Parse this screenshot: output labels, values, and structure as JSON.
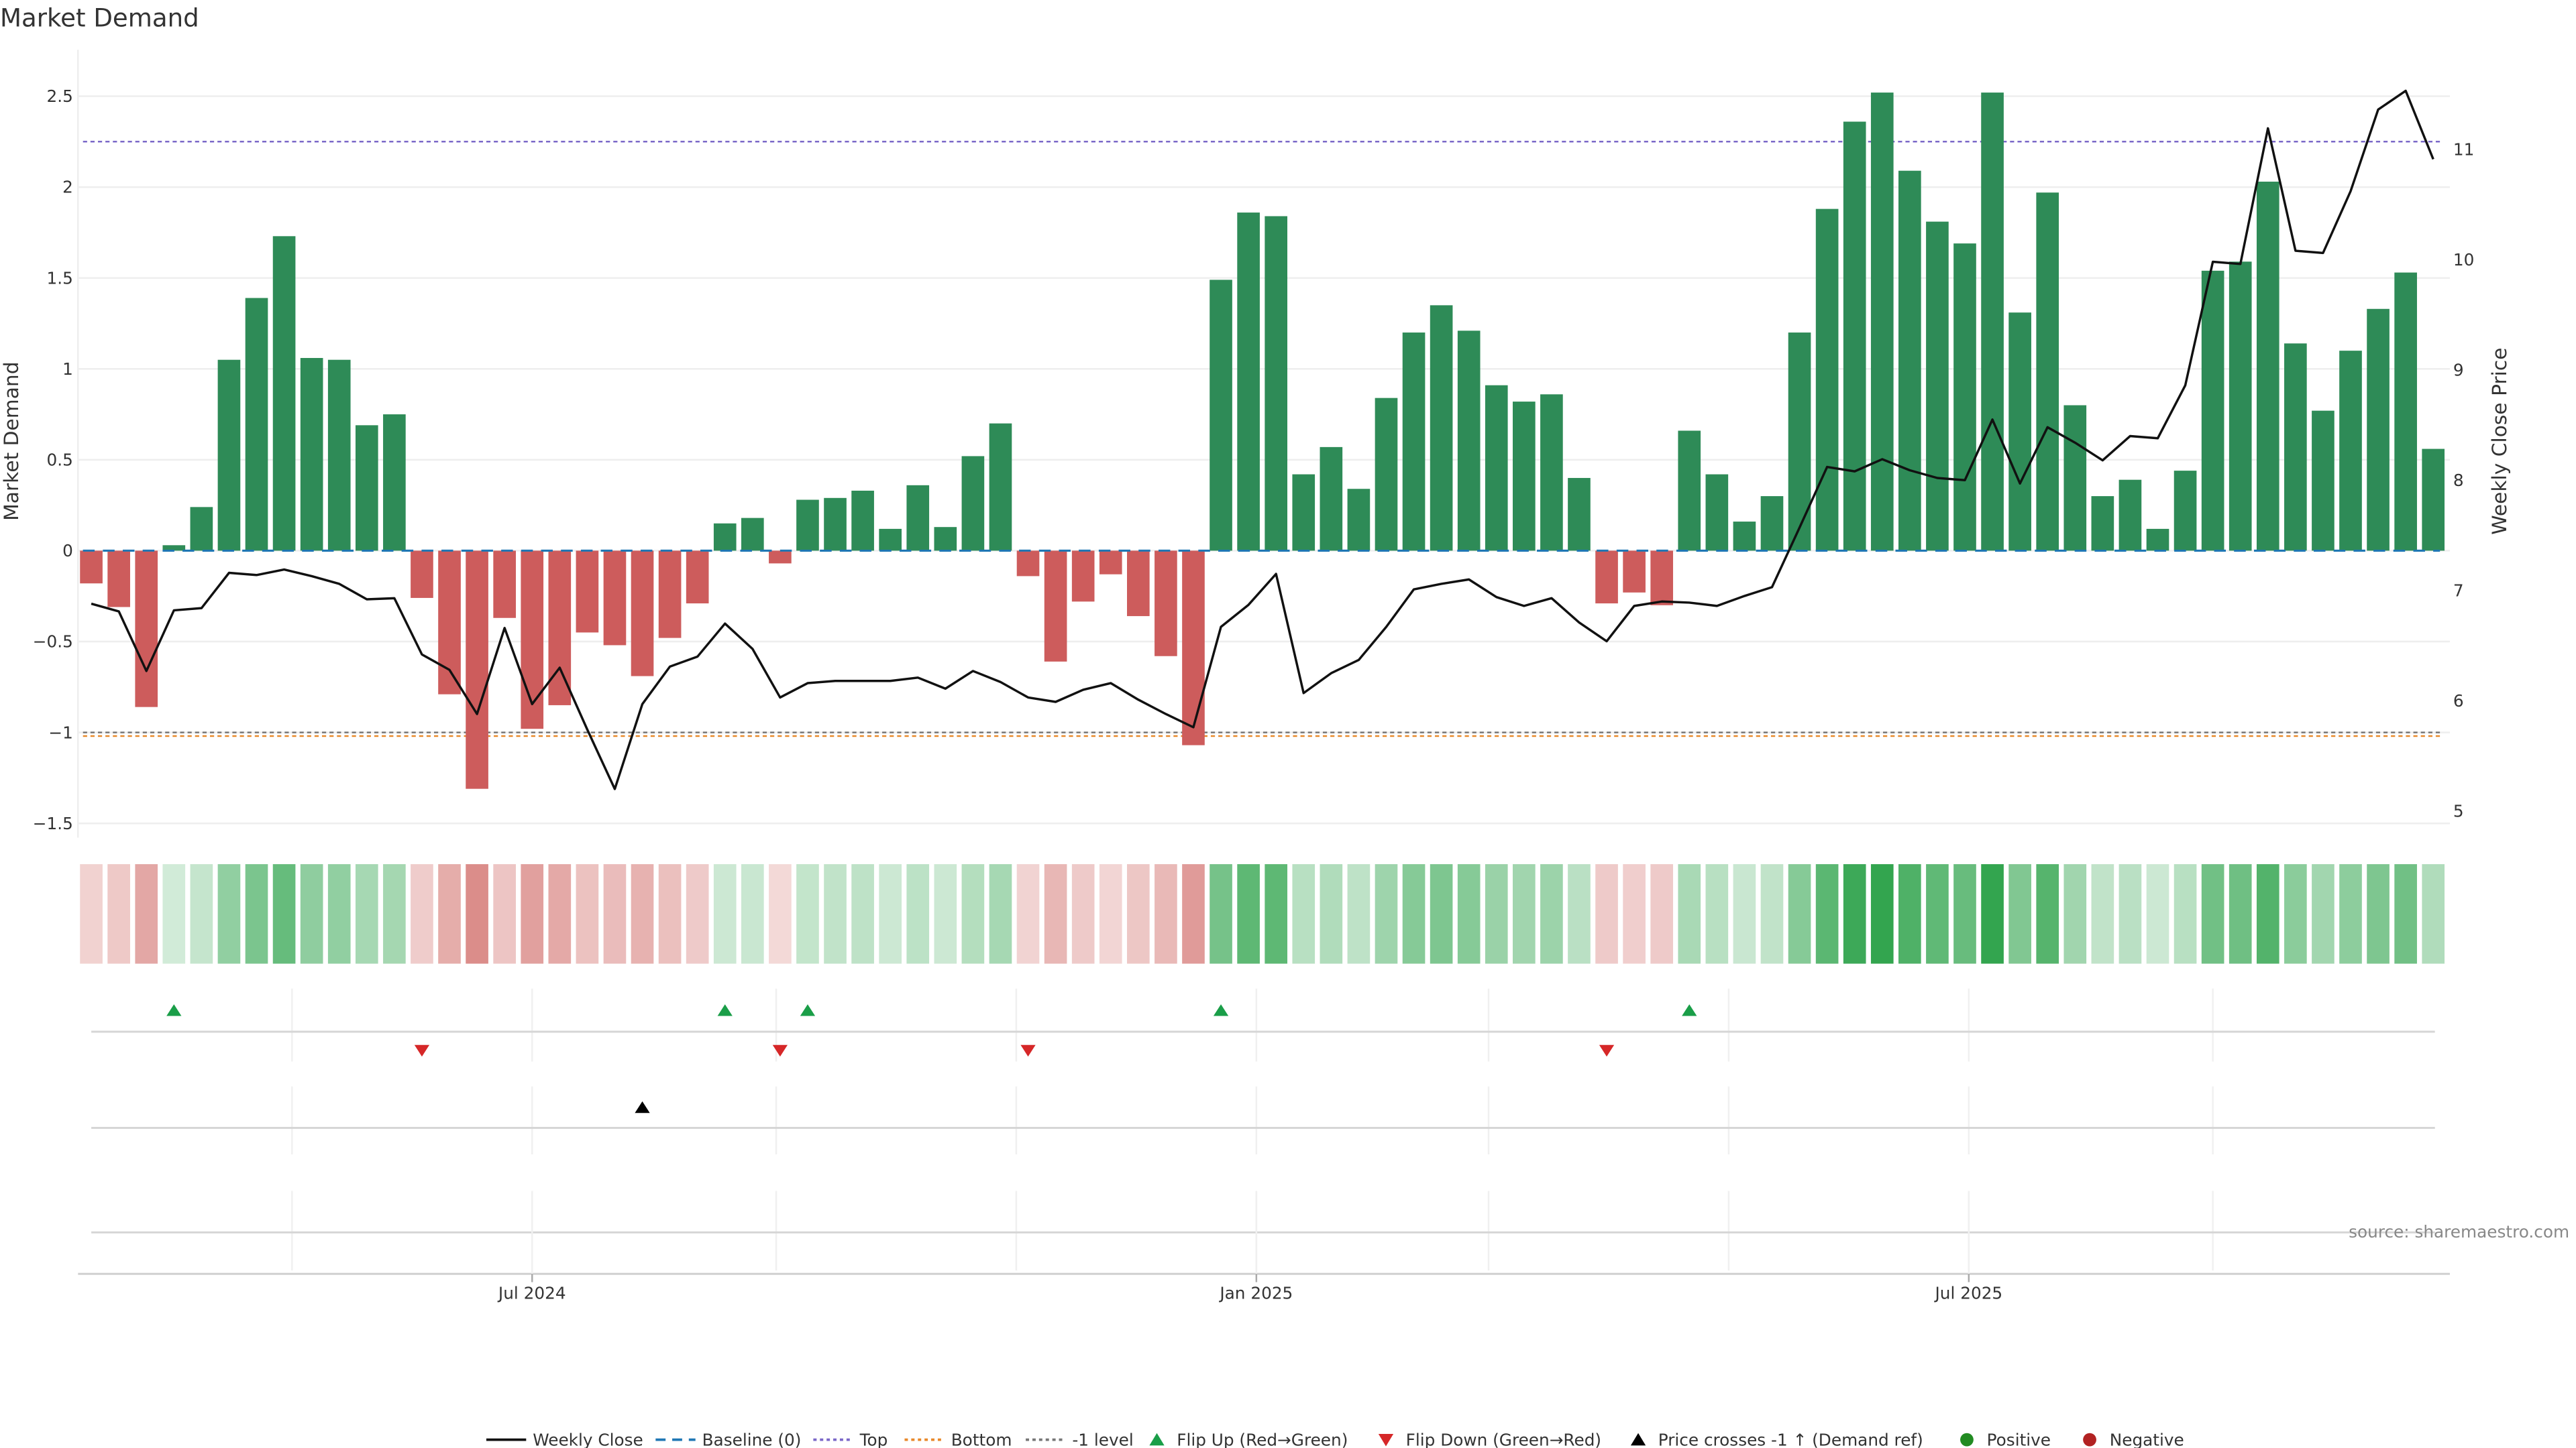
{
  "chart_data": {
    "type": "bar",
    "title": "Market Demand",
    "ylabel": "Market Demand",
    "y2label": "Weekly Close Price",
    "ylim": [
      -1.5,
      2.7
    ],
    "y2lim": [
      5,
      11.6
    ],
    "yticks": [
      2.5,
      2,
      1.5,
      1,
      0.5,
      0,
      -0.5,
      -1,
      -1.5
    ],
    "ytick_labels": [
      "2.5",
      "2",
      "1.5",
      "1",
      "0.5",
      "0",
      "−0.5",
      "−1",
      "−1.5"
    ],
    "y2ticks": [
      5,
      6,
      7,
      8,
      9,
      10,
      11
    ],
    "y2tick_labels": [
      "5",
      "6",
      "7",
      "8",
      "9",
      "10",
      "11"
    ],
    "x_start_date": "2024-03-11",
    "x_frequency": "weekly",
    "xticks": [
      {
        "date": "2024-07-01",
        "label": "Jul 2024"
      },
      {
        "date": "2025-01-01",
        "label": "Jan 2025"
      },
      {
        "date": "2025-07-01",
        "label": "Jul 2025"
      }
    ],
    "minor_grid_dates": [
      "2024-05-01",
      "2024-07-01",
      "2024-09-01",
      "2024-11-01",
      "2025-01-01",
      "2025-03-01",
      "2025-05-01",
      "2025-07-01",
      "2025-09-01"
    ],
    "series": [
      {
        "name": "Market Demand",
        "kind": "bar",
        "values": [
          -0.18,
          -0.31,
          -0.86,
          0.03,
          0.24,
          1.05,
          1.39,
          1.73,
          1.06,
          1.05,
          0.69,
          0.75,
          -0.26,
          -0.79,
          -1.31,
          -0.37,
          -0.98,
          -0.85,
          -0.45,
          -0.52,
          -0.69,
          -0.48,
          -0.29,
          0.15,
          0.18,
          -0.07,
          0.28,
          0.29,
          0.33,
          0.12,
          0.36,
          0.13,
          0.52,
          0.7,
          -0.14,
          -0.61,
          -0.28,
          -0.13,
          -0.36,
          -0.58,
          -1.07,
          1.49,
          1.86,
          1.84,
          0.42,
          0.57,
          0.34,
          0.84,
          1.2,
          1.35,
          1.21,
          0.91,
          0.82,
          0.86,
          0.4,
          -0.29,
          -0.23,
          -0.3,
          0.66,
          0.42,
          0.16,
          0.3,
          1.2,
          1.88,
          2.36,
          2.52,
          2.09,
          1.81,
          1.69,
          2.52,
          1.31,
          1.97,
          0.8,
          0.3,
          0.39,
          0.12,
          0.44,
          1.54,
          1.59,
          2.03,
          1.14,
          0.77,
          1.1,
          1.33,
          1.53,
          0.56
        ]
      },
      {
        "name": "Weekly Close",
        "kind": "line",
        "axis": "right",
        "values": [
          6.88,
          6.81,
          6.27,
          6.82,
          6.84,
          7.16,
          7.14,
          7.19,
          7.13,
          7.06,
          6.92,
          6.93,
          6.42,
          6.28,
          5.88,
          6.66,
          5.97,
          6.3,
          5.74,
          5.2,
          5.97,
          6.31,
          6.4,
          6.7,
          6.47,
          6.03,
          6.16,
          6.18,
          6.18,
          6.18,
          6.21,
          6.11,
          6.27,
          6.17,
          6.03,
          5.99,
          6.1,
          6.16,
          6.01,
          5.88,
          5.76,
          6.67,
          6.87,
          7.15,
          6.07,
          6.25,
          6.37,
          6.67,
          7.01,
          7.06,
          7.1,
          6.94,
          6.86,
          6.93,
          6.71,
          6.54,
          6.86,
          6.9,
          6.89,
          6.86,
          6.95,
          7.03,
          7.57,
          8.12,
          8.08,
          8.19,
          8.09,
          8.02,
          8.0,
          8.55,
          7.97,
          8.48,
          8.34,
          8.18,
          8.4,
          8.38,
          8.86,
          9.98,
          9.96,
          11.19,
          10.08,
          10.06,
          10.62,
          11.36,
          11.53,
          10.91
        ]
      }
    ],
    "reference_lines": [
      {
        "name": "Baseline (0)",
        "value": 0,
        "color": "#1f77b4",
        "style": "dashed"
      },
      {
        "name": "Top",
        "value": 2.25,
        "color": "#7b68c8",
        "style": "dotted"
      },
      {
        "name": "Bottom",
        "value": -1.02,
        "color": "#e8892b",
        "style": "dotted"
      },
      {
        "name": "-1 level",
        "value": -1,
        "color": "#777777",
        "style": "dotted"
      }
    ],
    "events": {
      "flip_up_indices": [
        3,
        23,
        26,
        41,
        58
      ],
      "flip_down_indices": [
        12,
        25,
        34,
        55
      ],
      "price_cross_indices": [
        20
      ]
    },
    "legend_position": "bottom",
    "legend": [
      "Weekly Close",
      "Baseline (0)",
      "Top",
      "Bottom",
      "-1 level",
      "Flip Up (Red→Green)",
      "Flip Down (Green→Red)",
      "Price crosses -1 ↑ (Demand ref)",
      "Positive",
      "Negative"
    ],
    "source": "source: sharemaestro.com"
  },
  "colors": {
    "positive_bar": "#2e8b57",
    "negative_bar": "#cd5c5c",
    "flip_up": "#1a9e48",
    "flip_down": "#d62728",
    "cross": "#000000",
    "positive_dot": "#228b22",
    "negative_dot": "#b22222"
  }
}
